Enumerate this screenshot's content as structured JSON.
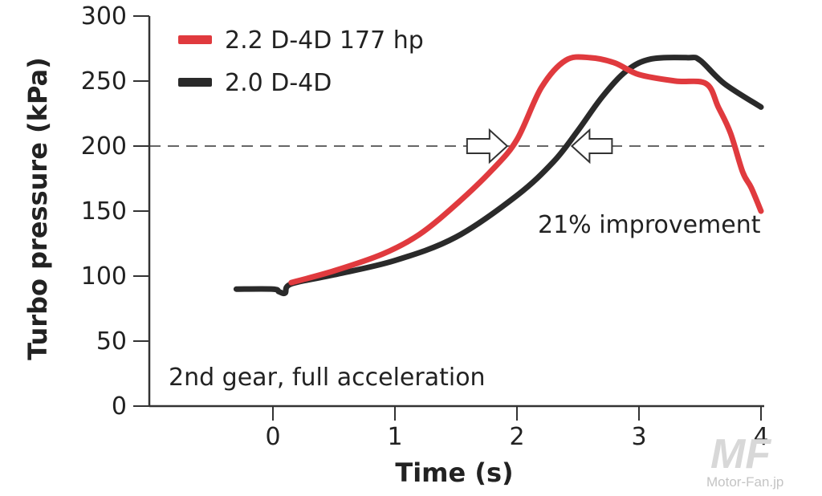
{
  "chart_data": {
    "type": "line",
    "title": "",
    "xlabel": "Time (s)",
    "ylabel": "Turbo pressure (kPa)",
    "xlim": [
      -1,
      4
    ],
    "ylim": [
      0,
      300
    ],
    "x_ticks": [
      0,
      1,
      2,
      3,
      4
    ],
    "x_tick_labels": [
      "0",
      "1",
      "2",
      "3",
      "4"
    ],
    "y_ticks": [
      0,
      50,
      100,
      150,
      200,
      250,
      300
    ],
    "y_tick_labels": [
      "0",
      "50",
      "100",
      "150",
      "200",
      "250",
      "300"
    ],
    "grid": false,
    "legend_position": "top-left",
    "reference_line": {
      "y": 200,
      "style": "dashed"
    },
    "series": [
      {
        "name": "2.2 D-4D 177 hp",
        "color": "#e03a3e",
        "x": [
          0.15,
          0.5,
          0.9,
          1.2,
          1.5,
          1.8,
          2.0,
          2.2,
          2.4,
          2.6,
          2.8,
          3.0,
          3.3,
          3.55,
          3.65,
          3.75,
          3.85,
          3.92,
          4.0
        ],
        "y": [
          95,
          104,
          117,
          132,
          155,
          182,
          205,
          245,
          266,
          268,
          264,
          255,
          250,
          248,
          230,
          210,
          180,
          168,
          150
        ]
      },
      {
        "name": "2.0 D-4D",
        "color": "#2a2a2a",
        "x": [
          -0.3,
          0.0,
          0.05,
          0.1,
          0.15,
          0.5,
          1.0,
          1.5,
          2.0,
          2.3,
          2.5,
          2.7,
          2.9,
          3.1,
          3.4,
          3.5,
          3.7,
          4.0
        ],
        "y": [
          90,
          90,
          88,
          87,
          94,
          101,
          112,
          130,
          162,
          188,
          212,
          238,
          258,
          267,
          268,
          266,
          248,
          230
        ]
      }
    ],
    "annotations": [
      {
        "text": "21% improvement",
        "x": 2.2,
        "y": 140
      },
      {
        "text": "2nd gear, full acceleration",
        "x": -0.85,
        "y": 20
      }
    ],
    "arrows": [
      {
        "direction": "right",
        "x": 1.92,
        "y": 200
      },
      {
        "direction": "left",
        "x": 2.45,
        "y": 200
      }
    ]
  },
  "watermark": {
    "logo_text": "MF",
    "site_text": "Motor-Fan.jp"
  }
}
